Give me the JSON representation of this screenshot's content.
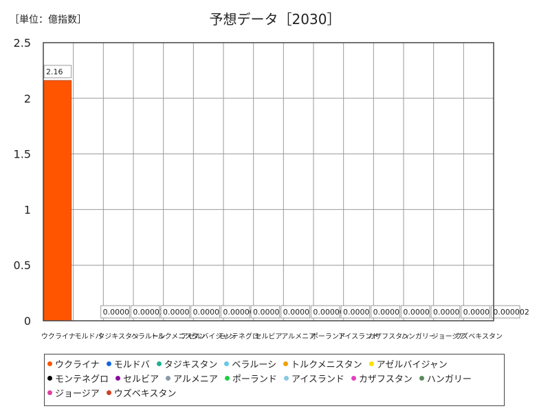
{
  "unit_label": "［単位：億指数］",
  "chart_data": {
    "type": "bar",
    "title": "予想データ［2030］",
    "xlabel": "",
    "ylabel": "",
    "ylim": [
      0,
      2.5
    ],
    "yticks": [
      "0",
      "0.5",
      "1",
      "1.5",
      "2",
      "2.5"
    ],
    "grid": true,
    "categories": [
      "ウクライナ",
      "モルドバ",
      "タジキスタン",
      "ベラルーシ",
      "トルクメニスタン",
      "アゼルバイジャン",
      "モンテネグロ",
      "セルビア",
      "アルメニア",
      "ポーランド",
      "アイスランド",
      "カザフスタン",
      "ハンガリー",
      "ジョージア",
      "ウズベキスタン"
    ],
    "values": [
      2.16,
      0.0,
      2e-05,
      0.0,
      0.0,
      0.0,
      0.0,
      0.0,
      0.0,
      0.0,
      0.0,
      0.0,
      0.0,
      0.0,
      2e-06
    ],
    "data_labels": [
      "2.16",
      "0.0000",
      "0.00002",
      "0.0000",
      "0.0000",
      "0.00000",
      "0.0000",
      "0.0000",
      "0.00000",
      "0.0000",
      "0.0000",
      "0.0000",
      "0.0000",
      "0.0000",
      "0.000002"
    ],
    "bar_color": "#ff5500",
    "legend": [
      {
        "name": "ウクライナ",
        "color": "#ff5500"
      },
      {
        "name": "モルドバ",
        "color": "#1565e0"
      },
      {
        "name": "タジキスタン",
        "color": "#20b090"
      },
      {
        "name": "ベラルーシ",
        "color": "#66c8e8"
      },
      {
        "name": "トルクメニスタン",
        "color": "#f0a000"
      },
      {
        "name": "アゼルバイジャン",
        "color": "#f8e000"
      },
      {
        "name": "モンテネグロ",
        "color": "#000000"
      },
      {
        "name": "セルビア",
        "color": "#8a0aa0"
      },
      {
        "name": "アルメニア",
        "color": "#8899aa"
      },
      {
        "name": "ポーランド",
        "color": "#22cc44"
      },
      {
        "name": "アイスランド",
        "color": "#88c8e0"
      },
      {
        "name": "カザフスタン",
        "color": "#e040c0"
      },
      {
        "name": "ハンガリー",
        "color": "#5a8a5a"
      },
      {
        "name": "ジョージア",
        "color": "#e040a0"
      },
      {
        "name": "ウズベキスタン",
        "color": "#d04020"
      }
    ]
  }
}
